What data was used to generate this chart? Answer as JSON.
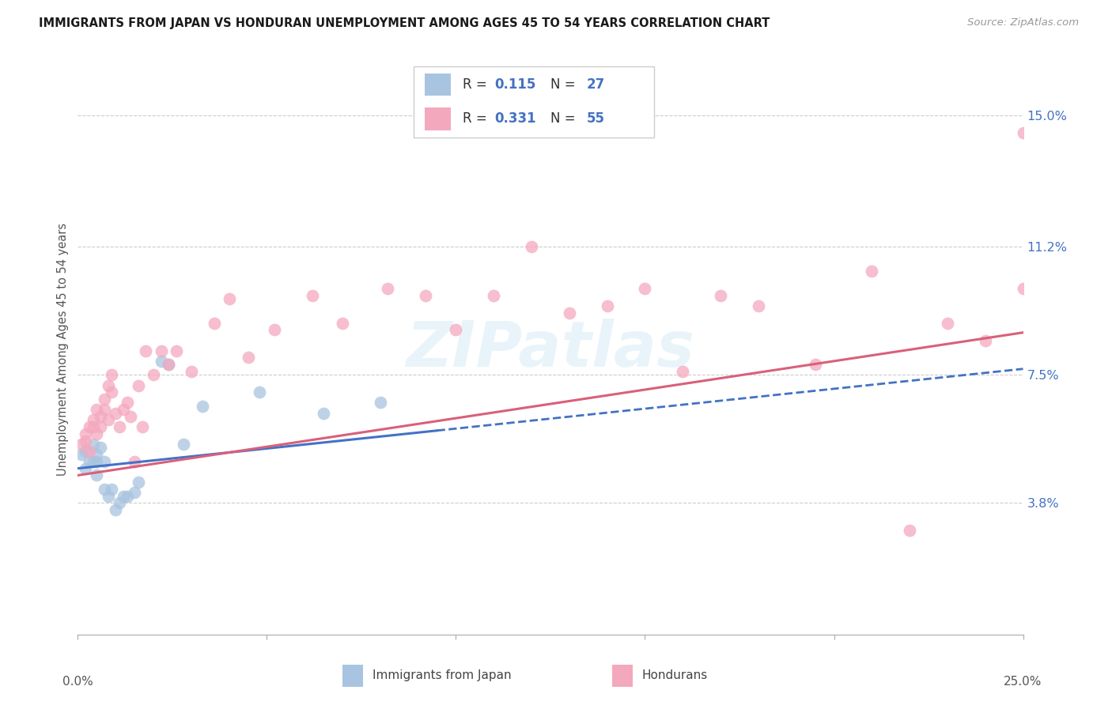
{
  "title": "IMMIGRANTS FROM JAPAN VS HONDURAN UNEMPLOYMENT AMONG AGES 45 TO 54 YEARS CORRELATION CHART",
  "source": "Source: ZipAtlas.com",
  "ylabel": "Unemployment Among Ages 45 to 54 years",
  "ytick_values": [
    0.038,
    0.075,
    0.112,
    0.15
  ],
  "ytick_labels": [
    "3.8%",
    "7.5%",
    "11.2%",
    "15.0%"
  ],
  "xmin": 0.0,
  "xmax": 0.25,
  "ymin": 0.0,
  "ymax": 0.165,
  "japan_color": "#a8c4e0",
  "japan_line_color": "#4472c4",
  "honduran_color": "#f4a8be",
  "honduran_line_color": "#d9607a",
  "watermark_text": "ZIPatlas",
  "r_japan": 0.115,
  "n_japan": 27,
  "r_honduran": 0.331,
  "n_honduran": 55,
  "japan_pts_x": [
    0.001,
    0.002,
    0.002,
    0.003,
    0.004,
    0.004,
    0.005,
    0.005,
    0.005,
    0.006,
    0.007,
    0.007,
    0.008,
    0.009,
    0.01,
    0.011,
    0.012,
    0.013,
    0.015,
    0.016,
    0.022,
    0.024,
    0.028,
    0.033,
    0.048,
    0.065,
    0.08
  ],
  "japan_pts_y": [
    0.052,
    0.048,
    0.053,
    0.05,
    0.05,
    0.055,
    0.046,
    0.052,
    0.05,
    0.054,
    0.05,
    0.042,
    0.04,
    0.042,
    0.036,
    0.038,
    0.04,
    0.04,
    0.041,
    0.044,
    0.079,
    0.078,
    0.055,
    0.066,
    0.07,
    0.064,
    0.067
  ],
  "hon_pts_x": [
    0.001,
    0.002,
    0.002,
    0.003,
    0.003,
    0.004,
    0.004,
    0.005,
    0.005,
    0.006,
    0.006,
    0.007,
    0.007,
    0.008,
    0.008,
    0.009,
    0.009,
    0.01,
    0.011,
    0.012,
    0.013,
    0.014,
    0.015,
    0.016,
    0.017,
    0.018,
    0.02,
    0.022,
    0.024,
    0.026,
    0.03,
    0.036,
    0.04,
    0.045,
    0.052,
    0.062,
    0.07,
    0.082,
    0.092,
    0.1,
    0.11,
    0.12,
    0.13,
    0.14,
    0.15,
    0.16,
    0.17,
    0.18,
    0.195,
    0.21,
    0.22,
    0.23,
    0.24,
    0.25,
    0.25
  ],
  "hon_pts_y": [
    0.055,
    0.058,
    0.056,
    0.06,
    0.053,
    0.062,
    0.06,
    0.058,
    0.065,
    0.063,
    0.06,
    0.068,
    0.065,
    0.062,
    0.072,
    0.07,
    0.075,
    0.064,
    0.06,
    0.065,
    0.067,
    0.063,
    0.05,
    0.072,
    0.06,
    0.082,
    0.075,
    0.082,
    0.078,
    0.082,
    0.076,
    0.09,
    0.097,
    0.08,
    0.088,
    0.098,
    0.09,
    0.1,
    0.098,
    0.088,
    0.098,
    0.112,
    0.093,
    0.095,
    0.1,
    0.076,
    0.098,
    0.095,
    0.078,
    0.105,
    0.03,
    0.09,
    0.085,
    0.145,
    0.1
  ],
  "japan_trend_solid_end": 0.1,
  "japan_trend_intercept": 0.05,
  "japan_trend_slope": 0.3,
  "hon_trend_intercept": 0.048,
  "hon_trend_slope": 0.33
}
